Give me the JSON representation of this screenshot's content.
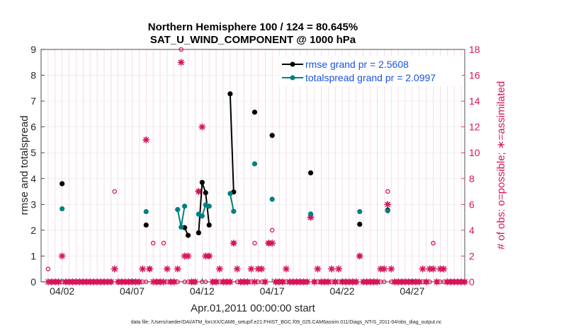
{
  "chart_data": {
    "type": "line",
    "title_line1": "Northern Hemisphere 100 / 124 = 80.645%",
    "title_line2": "SAT_U_WIND_COMPONENT @ 1000 hPa",
    "xlabel": "Apr.01,2011 00:00:00 start",
    "ylabel_left": "rmse and totalspread",
    "ylabel_right": "# of obs: o=possible; ∗=assimilated",
    "footer": "data file: /Users/raeder/DAI/ATM_forcXX/CAM6_setup/f.e21.FHIST_BGC.f09_025.CAM6assim.011/Diags_NTrS_2011-04/obs_diag_output.nc",
    "xlim": [
      0.5,
      30.75
    ],
    "ylim_left": [
      0,
      9
    ],
    "ylim_right": [
      0,
      18
    ],
    "x_ticks": [
      {
        "x": 2,
        "label": "04/02"
      },
      {
        "x": 7,
        "label": "04/07"
      },
      {
        "x": 12,
        "label": "04/12"
      },
      {
        "x": 17,
        "label": "04/17"
      },
      {
        "x": 22,
        "label": "04/22"
      },
      {
        "x": 27,
        "label": "04/27"
      }
    ],
    "y_ticks_left": [
      "0",
      "1",
      "2",
      "3",
      "4",
      "5",
      "6",
      "7",
      "8",
      "9"
    ],
    "y_ticks_right": [
      "0",
      "2",
      "4",
      "6",
      "8",
      "10",
      "12",
      "14",
      "16",
      "18"
    ],
    "colors": {
      "rmse": "#000000",
      "spread": "#008080",
      "obs": "#d6145a",
      "legend_text": "#1a52e6"
    },
    "series": [
      {
        "name": "rmse grand pr = 2.5608",
        "key": "rmse",
        "segments": [
          [
            [
              2.0,
              3.8
            ]
          ],
          [
            [
              8.0,
              2.2
            ]
          ],
          [
            [
              10.75,
              2.1
            ],
            [
              11.0,
              1.8
            ]
          ],
          [
            [
              11.75,
              1.9
            ],
            [
              12.0,
              3.85
            ],
            [
              12.25,
              3.45
            ],
            [
              12.5,
              2.2
            ]
          ],
          [
            [
              14.0,
              7.28
            ],
            [
              14.25,
              3.48
            ]
          ],
          [
            [
              15.75,
              6.57
            ]
          ],
          [
            [
              17.0,
              5.67
            ]
          ],
          [
            [
              19.75,
              4.22
            ]
          ],
          [
            [
              23.25,
              2.23
            ]
          ],
          [
            [
              25.25,
              2.78
            ]
          ]
        ]
      },
      {
        "name": "totalspread grand pr = 2.0997",
        "key": "spread",
        "segments": [
          [
            [
              2.0,
              2.83
            ]
          ],
          [
            [
              8.0,
              2.72
            ]
          ],
          [
            [
              10.25,
              2.8
            ],
            [
              10.5,
              2.12
            ],
            [
              10.75,
              2.93
            ]
          ],
          [
            [
              11.75,
              2.62
            ],
            [
              12.0,
              2.55
            ],
            [
              12.25,
              2.98
            ],
            [
              12.5,
              2.93
            ]
          ],
          [
            [
              14.0,
              3.42
            ],
            [
              14.25,
              2.73
            ]
          ],
          [
            [
              15.75,
              4.57
            ]
          ],
          [
            [
              17.0,
              3.2
            ]
          ],
          [
            [
              19.75,
              2.63
            ]
          ],
          [
            [
              23.25,
              2.72
            ]
          ],
          [
            [
              25.25,
              2.75
            ]
          ]
        ]
      }
    ],
    "obs_possible_nonzero": [
      [
        1.0,
        1
      ],
      [
        5.75,
        7
      ],
      [
        8.25,
        1
      ],
      [
        8.5,
        3
      ],
      [
        9.25,
        3
      ],
      [
        10.5,
        18
      ],
      [
        11.75,
        7
      ],
      [
        12.5,
        2
      ],
      [
        14.25,
        3
      ],
      [
        15.75,
        3
      ],
      [
        16.75,
        3
      ],
      [
        17.0,
        4
      ],
      [
        19.75,
        5
      ],
      [
        23.25,
        2
      ],
      [
        25.25,
        7
      ],
      [
        28.5,
        3
      ]
    ],
    "obs_assimilated_nonzero": [
      [
        2.0,
        2
      ],
      [
        5.75,
        1
      ],
      [
        7.75,
        1
      ],
      [
        8.0,
        11
      ],
      [
        8.25,
        1
      ],
      [
        9.5,
        1
      ],
      [
        10.25,
        1
      ],
      [
        10.5,
        17
      ],
      [
        10.75,
        2
      ],
      [
        11.0,
        2
      ],
      [
        11.75,
        7
      ],
      [
        12.0,
        12
      ],
      [
        12.25,
        2
      ],
      [
        12.5,
        2
      ],
      [
        13.25,
        1
      ],
      [
        14.25,
        3
      ],
      [
        14.5,
        1
      ],
      [
        15.5,
        1
      ],
      [
        16.0,
        1
      ],
      [
        16.25,
        1
      ],
      [
        16.75,
        3
      ],
      [
        17.0,
        3
      ],
      [
        18.0,
        1
      ],
      [
        19.75,
        5
      ],
      [
        20.25,
        1
      ],
      [
        21.25,
        1
      ],
      [
        21.75,
        1
      ],
      [
        23.25,
        2
      ],
      [
        24.75,
        1
      ],
      [
        25.0,
        1
      ],
      [
        25.25,
        6
      ],
      [
        25.5,
        1
      ],
      [
        27.75,
        1
      ],
      [
        28.25,
        1
      ],
      [
        28.5,
        1
      ],
      [
        29.0,
        1
      ],
      [
        29.25,
        1
      ]
    ]
  }
}
